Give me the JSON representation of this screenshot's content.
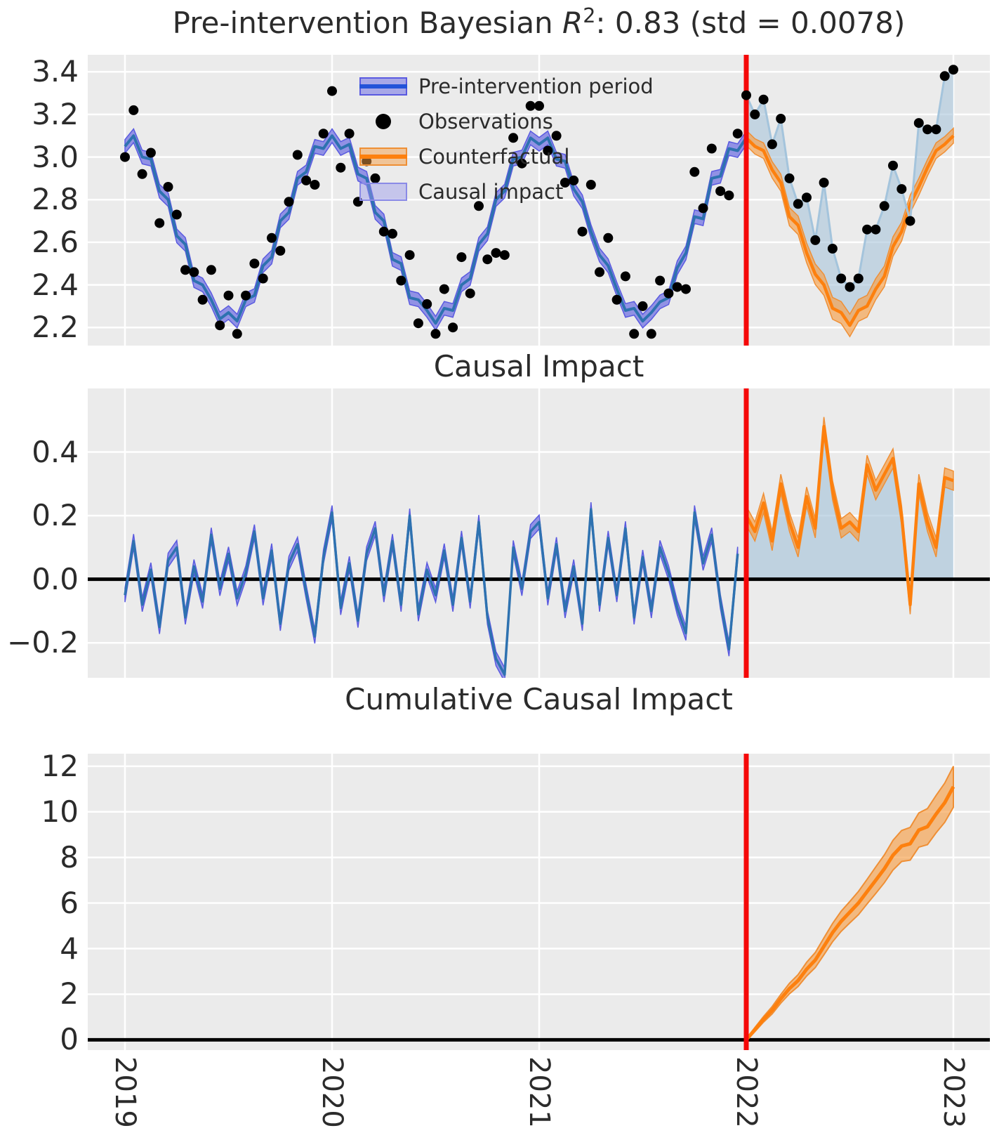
{
  "colors": {
    "background": "#ffffff",
    "axes_bg": "#ebebeb",
    "grid": "#ffffff",
    "fit_line": "#2e72b0",
    "fit_band_fill": "#7a7ae4",
    "fit_band_edge": "#5a5ae0",
    "legend_fit_mid": "#2353d9",
    "counterfactual_line": "#fd800e",
    "counterfactual_band_fill": "#f69e46",
    "counterfactual_band_edge": "#ef8f35",
    "impact_fill": "#a8c5da",
    "impact_line": "#a4c4dc",
    "causal_band_fill": "#9696ec",
    "causal_band_edge": "#8a8ae6",
    "observations": "#000000",
    "intervention_line": "#f50808",
    "zero_line": "#000000",
    "tick_text": "#2b2b2b",
    "title_text": "#2b2b2b"
  },
  "chart_data": {
    "type": "line",
    "intervention_x": 2022,
    "x_axis": {
      "ticks": [
        2019,
        2020,
        2021,
        2022,
        2023
      ],
      "range": [
        2018.82,
        2023.15
      ]
    },
    "sampling": {
      "t_start": 2019.0,
      "t_step_years": 0.0416667,
      "n": 97,
      "pre_end_index": 72
    },
    "model": [
      3.05,
      3.1,
      3.0,
      2.99,
      2.84,
      2.8,
      2.63,
      2.59,
      2.42,
      2.4,
      2.33,
      2.24,
      2.27,
      2.23,
      2.33,
      2.35,
      2.49,
      2.53,
      2.7,
      2.74,
      2.9,
      2.93,
      3.05,
      3.04,
      3.1,
      3.04,
      3.06,
      2.92,
      2.9,
      2.74,
      2.7,
      2.52,
      2.5,
      2.34,
      2.33,
      2.28,
      2.22,
      2.29,
      2.28,
      2.4,
      2.43,
      2.59,
      2.64,
      2.8,
      2.84,
      2.99,
      3.0,
      3.09,
      3.06,
      3.09,
      2.99,
      2.98,
      2.85,
      2.79,
      2.65,
      2.54,
      2.49,
      2.38,
      2.28,
      2.29,
      2.23,
      2.27,
      2.32,
      2.34,
      2.48,
      2.55,
      2.72,
      2.71,
      2.9,
      2.91,
      3.04,
      3.03,
      3.09,
      3.05,
      3.03,
      2.94,
      2.88,
      2.72,
      2.68,
      2.55,
      2.45,
      2.4,
      2.29,
      2.27,
      2.21,
      2.28,
      2.3,
      2.38,
      2.44,
      2.58,
      2.65,
      2.78,
      2.86,
      2.95,
      3.03,
      3.06,
      3.1
    ],
    "impact": [
      -0.05,
      0.12,
      -0.08,
      0.03,
      -0.15,
      0.06,
      0.1,
      -0.12,
      0.04,
      -0.07,
      0.14,
      -0.03,
      0.08,
      -0.06,
      0.02,
      0.15,
      -0.06,
      0.09,
      -0.14,
      0.05,
      0.11,
      -0.04,
      -0.18,
      0.07,
      0.21,
      -0.09,
      0.05,
      -0.13,
      0.08,
      0.16,
      -0.05,
      0.12,
      -0.08,
      0.2,
      -0.11,
      0.03,
      -0.05,
      0.09,
      -0.08,
      0.13,
      -0.07,
      0.18,
      -0.12,
      -0.25,
      -0.3,
      0.1,
      -0.03,
      0.15,
      0.18,
      -0.06,
      0.11,
      -0.1,
      0.04,
      -0.14,
      0.22,
      -0.08,
      0.13,
      -0.05,
      0.16,
      -0.12,
      0.07,
      -0.1,
      0.1,
      0.02,
      -0.09,
      -0.17,
      0.21,
      0.05,
      0.14,
      -0.07,
      -0.22,
      0.08,
      0.2,
      0.15,
      0.24,
      0.12,
      0.3,
      0.18,
      0.1,
      0.26,
      0.16,
      0.48,
      0.28,
      0.16,
      0.18,
      0.15,
      0.36,
      0.28,
      0.33,
      0.38,
      0.2,
      -0.08,
      0.3,
      0.18,
      0.1,
      0.32,
      0.31
    ],
    "panels": [
      {
        "title_prefix": "Pre-intervention Bayesian ",
        "title_stat": "R",
        "title_sup": "2",
        "title_suffix": ": 0.83 (std = 0.0078)",
        "r_squared": 0.83,
        "r_squared_std": 0.0078,
        "ylim": [
          2.115,
          3.48
        ],
        "yticks": [
          3.4,
          3.2,
          3.0,
          2.8,
          2.6,
          2.4,
          2.2
        ],
        "tick_decimals": 1,
        "pre_band_halfwidth": 0.032,
        "post_band": {
          "base": 0.035,
          "slope": 0.02,
          "ref": 3.1
        }
      },
      {
        "title": "Causal Impact",
        "ylim": [
          -0.31,
          0.6
        ],
        "yticks": [
          0.4,
          0.2,
          0.0,
          -0.2
        ],
        "tick_decimals": 1,
        "pre_band_halfwidth": 0.022,
        "post_band_halfwidth": 0.03
      },
      {
        "title": "Cumulative Causal Impact",
        "ylim": [
          -0.45,
          12.55
        ],
        "yticks": [
          12,
          10,
          8,
          6,
          4,
          2,
          0
        ],
        "tick_decimals": 0,
        "cumulative": [
          0.0,
          0.45,
          0.9,
          1.3,
          1.8,
          2.25,
          2.6,
          3.1,
          3.5,
          4.1,
          4.7,
          5.2,
          5.6,
          6.0,
          6.5,
          7.0,
          7.5,
          8.1,
          8.5,
          8.6,
          9.2,
          9.35,
          9.9,
          10.4,
          11.1
        ],
        "band_halfwidth": [
          0.05,
          0.09,
          0.12,
          0.16,
          0.19,
          0.23,
          0.26,
          0.3,
          0.33,
          0.37,
          0.4,
          0.44,
          0.47,
          0.51,
          0.54,
          0.58,
          0.61,
          0.65,
          0.68,
          0.72,
          0.75,
          0.79,
          0.82,
          0.86,
          0.9
        ]
      }
    ],
    "legend": [
      {
        "label": "Pre-intervention period",
        "swatch": "band-blue"
      },
      {
        "label": "Observations",
        "swatch": "dot"
      },
      {
        "label": "Counterfactual",
        "swatch": "band-orange"
      },
      {
        "label": "Causal impact",
        "swatch": "band-lightblue"
      }
    ]
  }
}
